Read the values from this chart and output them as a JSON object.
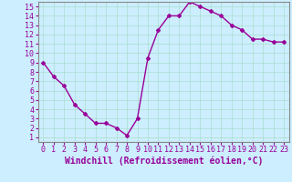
{
  "x": [
    0,
    1,
    2,
    3,
    4,
    5,
    6,
    7,
    8,
    9,
    10,
    11,
    12,
    13,
    14,
    15,
    16,
    17,
    18,
    19,
    20,
    21,
    22,
    23
  ],
  "y": [
    9.0,
    7.5,
    6.5,
    4.5,
    3.5,
    2.5,
    2.5,
    2.0,
    1.2,
    3.0,
    9.5,
    12.5,
    14.0,
    14.0,
    15.5,
    15.0,
    14.5,
    14.0,
    13.0,
    12.5,
    11.5,
    11.5,
    11.2,
    11.2
  ],
  "line_color": "#990099",
  "marker": "D",
  "marker_size": 2,
  "xlabel": "Windchill (Refroidissement éolien,°C)",
  "ylim_min": 1,
  "ylim_max": 15,
  "xlim_min": 0,
  "xlim_max": 23,
  "yticks": [
    1,
    2,
    3,
    4,
    5,
    6,
    7,
    8,
    9,
    10,
    11,
    12,
    13,
    14,
    15
  ],
  "xticks": [
    0,
    1,
    2,
    3,
    4,
    5,
    6,
    7,
    8,
    9,
    10,
    11,
    12,
    13,
    14,
    15,
    16,
    17,
    18,
    19,
    20,
    21,
    22,
    23
  ],
  "background_color": "#cceeff",
  "grid_color": "#aaddcc",
  "tick_label_color": "#990099",
  "xlabel_color": "#990099",
  "xlabel_fontsize": 7,
  "tick_fontsize": 6,
  "linewidth": 1.0
}
